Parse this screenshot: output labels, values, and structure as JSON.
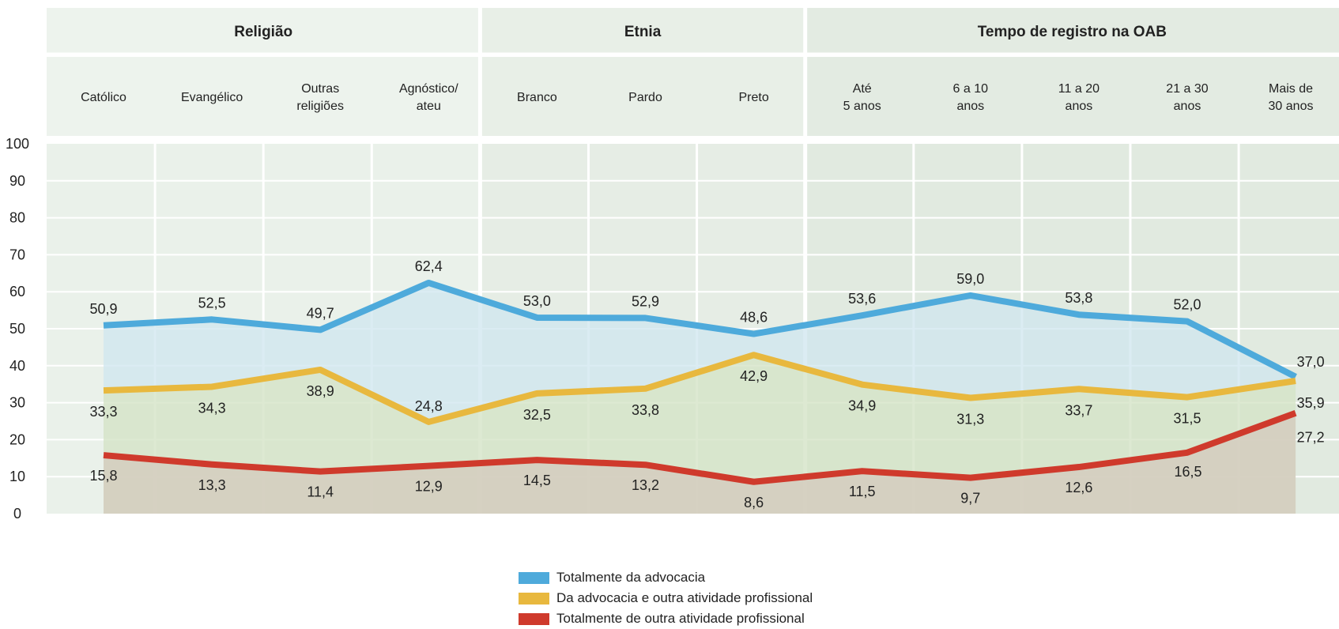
{
  "chart_data": {
    "type": "line",
    "groups": [
      {
        "label": "Religião",
        "categories": 4
      },
      {
        "label": "Etnia",
        "categories": 3
      },
      {
        "label": "Tempo de registro na OAB",
        "categories": 5
      }
    ],
    "categories": [
      [
        "Católico"
      ],
      [
        "Evangélico"
      ],
      [
        "Outras",
        "religiões"
      ],
      [
        "Agnóstico/",
        "ateu"
      ],
      [
        "Branco"
      ],
      [
        "Pardo"
      ],
      [
        "Preto"
      ],
      [
        "Até",
        "5 anos"
      ],
      [
        "6 a 10",
        "anos"
      ],
      [
        "11 a 20",
        "anos"
      ],
      [
        "21 a 30",
        "anos"
      ],
      [
        "Mais de",
        "30 anos"
      ]
    ],
    "series": [
      {
        "name": "Totalmente da advocacia",
        "color": "#4eaadb",
        "values": [
          50.9,
          52.5,
          49.7,
          62.4,
          53.0,
          52.9,
          48.6,
          53.6,
          59.0,
          53.8,
          52.0,
          37.0
        ],
        "labels": [
          "50,9",
          "52,5",
          "49,7",
          "62,4",
          "53,0",
          "52,9",
          "48,6",
          "53,6",
          "59,0",
          "53,8",
          "52,0",
          "37,0"
        ]
      },
      {
        "name": "Da advocacia e outra atividade profissional",
        "color": "#e8b83e",
        "values": [
          33.3,
          34.3,
          38.9,
          24.8,
          32.5,
          33.8,
          42.9,
          34.9,
          31.3,
          33.7,
          31.5,
          35.9
        ],
        "labels": [
          "33,3",
          "34,3",
          "38,9",
          "24,8",
          "32,5",
          "33,8",
          "42,9",
          "34,9",
          "31,3",
          "33,7",
          "31,5",
          "35,9"
        ]
      },
      {
        "name": "Totalmente de outra atividade profissional",
        "color": "#cf3a2c",
        "values": [
          15.8,
          13.3,
          11.4,
          12.9,
          14.5,
          13.2,
          8.6,
          11.5,
          9.7,
          12.6,
          16.5,
          27.2
        ],
        "labels": [
          "15,8",
          "13,3",
          "11,4",
          "12,9",
          "14,5",
          "13,2",
          "8,6",
          "11,5",
          "9,7",
          "12,6",
          "16,5",
          "27,2"
        ]
      }
    ],
    "yticks": [
      "0",
      "10",
      "20",
      "30",
      "40",
      "50",
      "60",
      "70",
      "80",
      "90",
      "100"
    ],
    "ylim": [
      0,
      100
    ],
    "grid": true,
    "legend_position": "bottom-center"
  }
}
